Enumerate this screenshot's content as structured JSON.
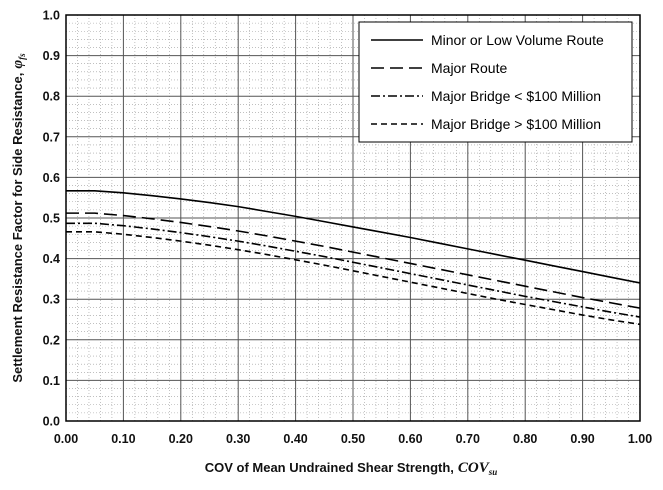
{
  "chart_data": {
    "type": "line",
    "xlabel": "COV of Mean Undrained Shear Strength,",
    "xlabel_symbol": "COV",
    "xlabel_subscript": "su",
    "ylabel": "Settlement Resistance Factor for Side Resistance,",
    "ylabel_symbol": "φ",
    "ylabel_subscript": "fs",
    "xlim": [
      0,
      1.0
    ],
    "ylim": [
      0,
      1.0
    ],
    "x_ticks": [
      "0.00",
      "0.10",
      "0.20",
      "0.30",
      "0.40",
      "0.50",
      "0.60",
      "0.70",
      "0.80",
      "0.90",
      "1.00"
    ],
    "y_ticks": [
      "0.0",
      "0.1",
      "0.2",
      "0.3",
      "0.4",
      "0.5",
      "0.6",
      "0.7",
      "0.8",
      "0.9",
      "1.0"
    ],
    "grid": true,
    "legend_position": "top-right",
    "x": [
      0.0,
      0.05,
      0.1,
      0.15,
      0.2,
      0.25,
      0.3,
      0.35,
      0.4,
      0.45,
      0.5,
      0.55,
      0.6,
      0.65,
      0.7,
      0.75,
      0.8,
      0.85,
      0.9,
      0.95,
      1.0
    ],
    "series": [
      {
        "name": "Minor or Low Volume Route",
        "dash": "solid",
        "values": [
          0.567,
          0.567,
          0.562,
          0.555,
          0.547,
          0.538,
          0.528,
          0.516,
          0.504,
          0.491,
          0.478,
          0.465,
          0.452,
          0.438,
          0.424,
          0.41,
          0.396,
          0.382,
          0.368,
          0.354,
          0.34
        ]
      },
      {
        "name": "Major Route",
        "dash": "longdash",
        "values": [
          0.512,
          0.512,
          0.506,
          0.498,
          0.489,
          0.479,
          0.468,
          0.456,
          0.443,
          0.43,
          0.416,
          0.402,
          0.388,
          0.374,
          0.36,
          0.346,
          0.332,
          0.318,
          0.304,
          0.291,
          0.278
        ]
      },
      {
        "name": "Major Bridge < $100 Million",
        "dash": "dashdot",
        "values": [
          0.487,
          0.487,
          0.481,
          0.473,
          0.464,
          0.454,
          0.443,
          0.431,
          0.418,
          0.405,
          0.391,
          0.377,
          0.363,
          0.349,
          0.335,
          0.321,
          0.307,
          0.294,
          0.281,
          0.268,
          0.256
        ]
      },
      {
        "name": "Major Bridge > $100 Million",
        "dash": "dash",
        "values": [
          0.466,
          0.466,
          0.46,
          0.452,
          0.443,
          0.433,
          0.422,
          0.41,
          0.397,
          0.384,
          0.37,
          0.356,
          0.342,
          0.328,
          0.314,
          0.3,
          0.287,
          0.274,
          0.261,
          0.249,
          0.238
        ]
      }
    ]
  }
}
